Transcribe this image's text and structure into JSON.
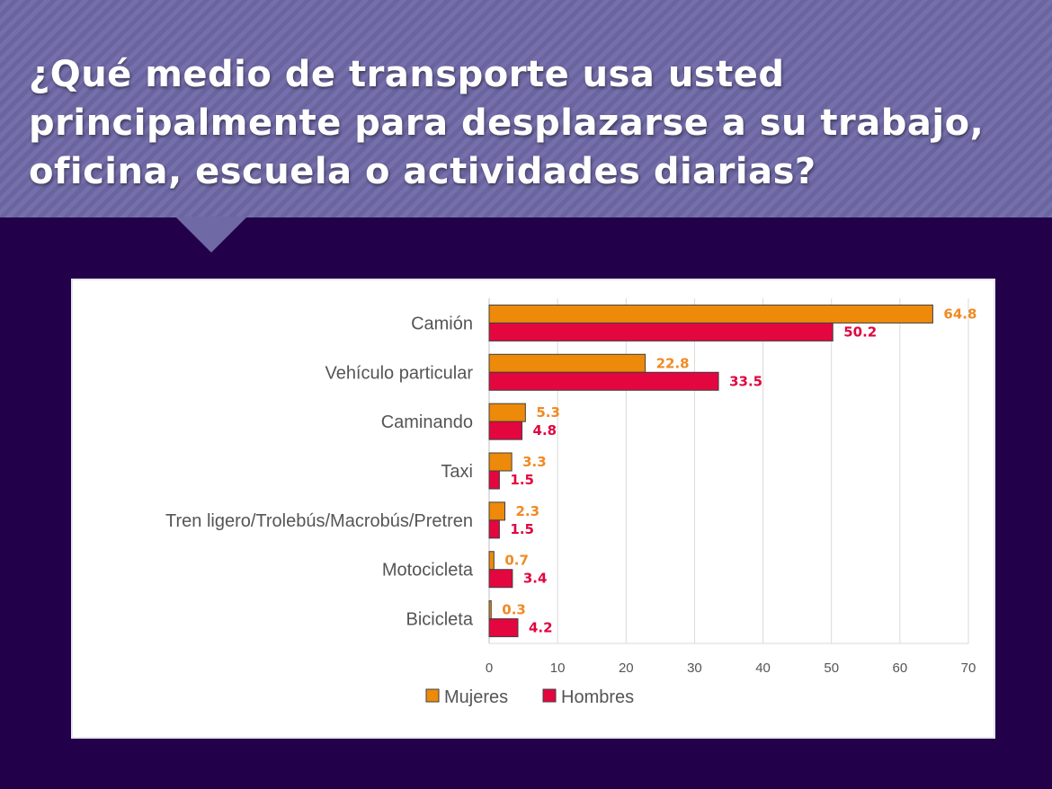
{
  "slide": {
    "title": "¿Qué medio de transporte usa usted principalmente para desplazarse a su trabajo, oficina, escuela o actividades diarias?"
  },
  "chart_data": {
    "type": "bar",
    "orientation": "horizontal",
    "title": "",
    "xlabel": "",
    "ylabel": "",
    "categories": [
      "Camión",
      "Vehículo particular",
      "Caminando",
      "Taxi",
      "Tren ligero/Trolebús/Macrobús/Pretren",
      "Motocicleta",
      "Bicicleta"
    ],
    "series": [
      {
        "name": "Mujeres",
        "color": "#ed8a0a",
        "label_color": "#f08a24",
        "values": [
          64.8,
          22.8,
          5.3,
          3.3,
          2.3,
          0.7,
          0.3
        ]
      },
      {
        "name": "Hombres",
        "color": "#e3063f",
        "label_color": "#e0063f",
        "values": [
          50.2,
          33.5,
          4.8,
          1.5,
          1.5,
          3.4,
          4.2
        ]
      }
    ],
    "xlim": [
      0,
      70
    ],
    "xticks": [
      0,
      10,
      20,
      30,
      40,
      50,
      60,
      70
    ],
    "grid": "vertical",
    "legend": "bottom",
    "data_labels": true
  }
}
